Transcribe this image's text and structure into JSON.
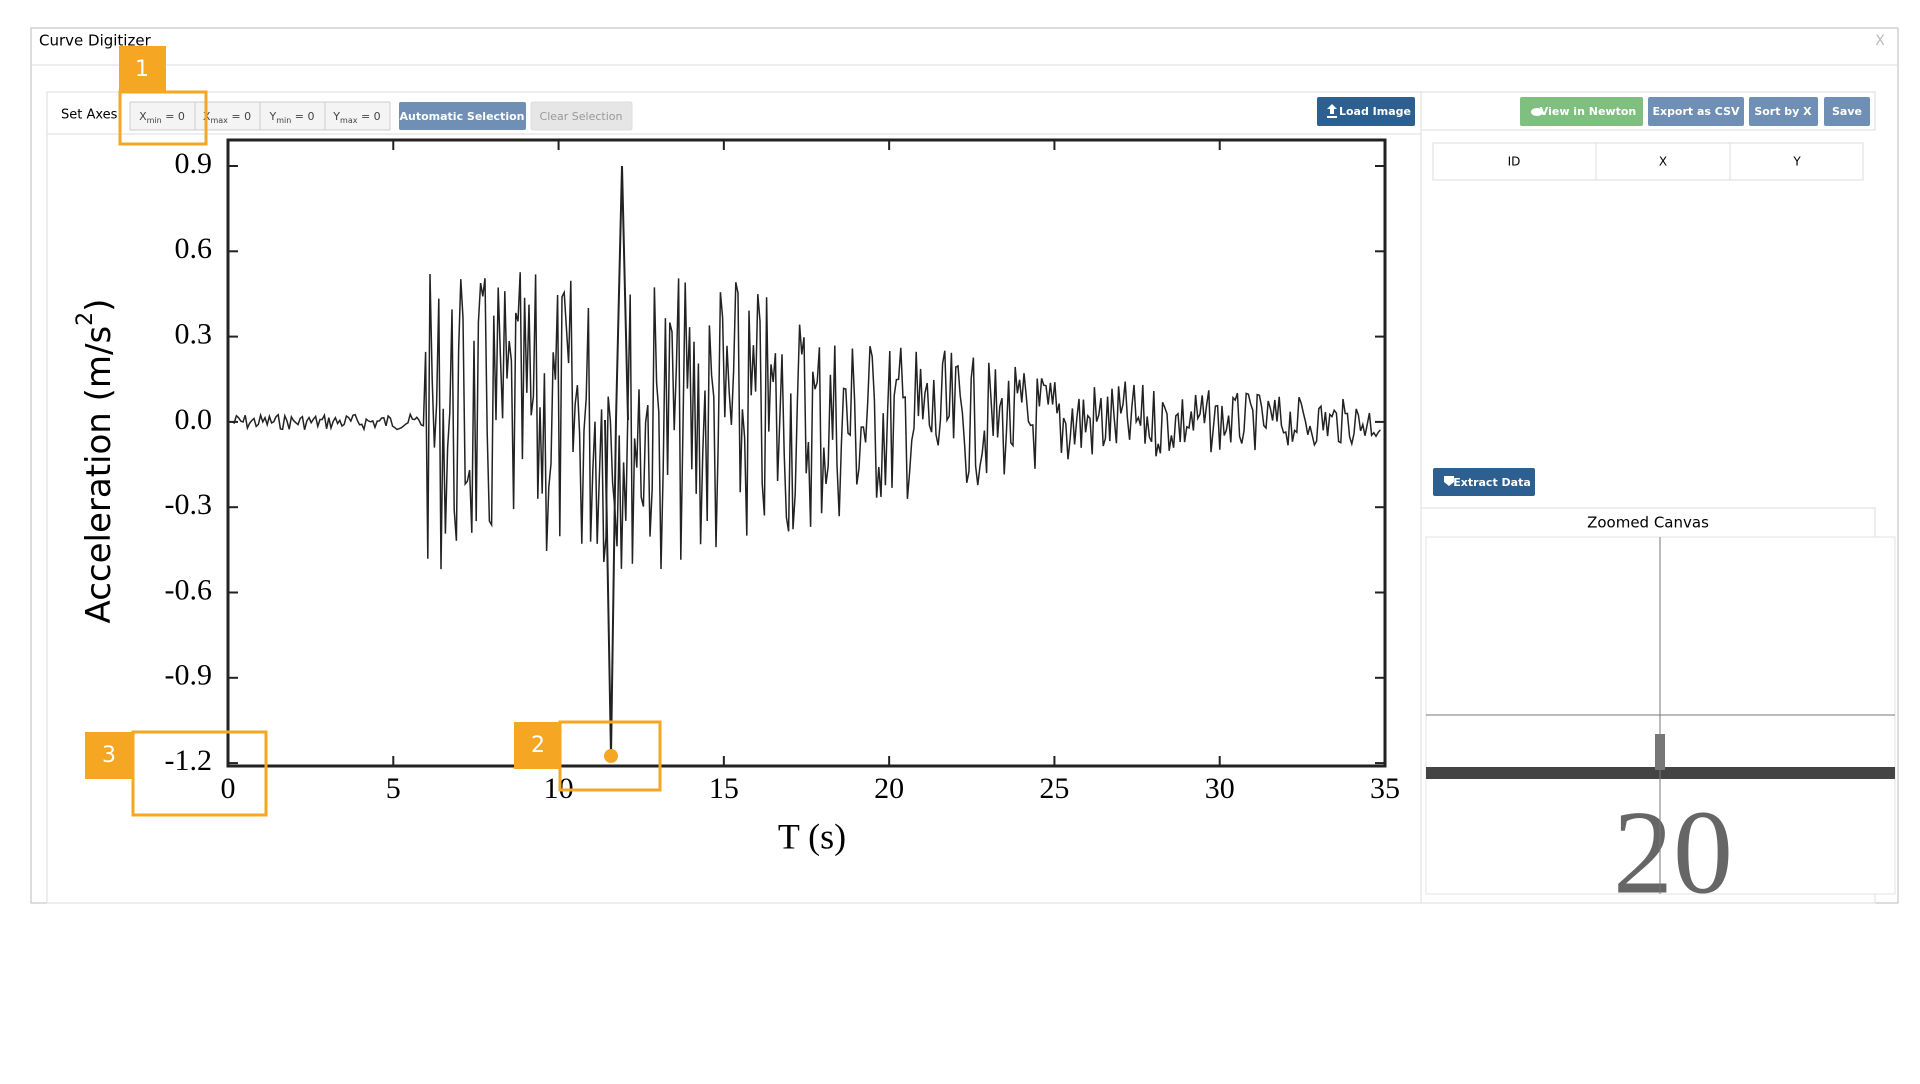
{
  "window": {
    "title": "Curve Digitizer",
    "close": "X"
  },
  "toolbar": {
    "label": "Set Axes:",
    "axis_buttons": [
      {
        "var": "X",
        "sub": "min",
        "eq": " = 0"
      },
      {
        "var": "X",
        "sub": "max",
        "eq": " = 0"
      },
      {
        "var": "Y",
        "sub": "min",
        "eq": " = 0"
      },
      {
        "var": "Y",
        "sub": "max",
        "eq": " = 0"
      }
    ],
    "automatic": "Automatic Selection",
    "clear": "Clear Selection",
    "load": "Load Image"
  },
  "right_toolbar": {
    "view": "View in Newton",
    "export": "Export as CSV",
    "sort": "Sort by X",
    "save": "Save"
  },
  "table": {
    "columns": [
      "ID",
      "X",
      "Y"
    ]
  },
  "extract": "Extract Data",
  "zoom": {
    "title": "Zoomed Canvas",
    "label": "20"
  },
  "image": {
    "ylabel": "Acceleration (m/s",
    "ylabel_sup": "2",
    "ylabel_end": ")",
    "xlabel": "T (s)",
    "yticks": [
      "0.9",
      "0.6",
      "0.3",
      "0.0",
      "-0.3",
      "-0.6",
      "-0.9",
      "-1.2"
    ],
    "xticks": [
      "0",
      "5",
      "10",
      "15",
      "20",
      "25",
      "30",
      "35"
    ]
  },
  "callouts": [
    "1",
    "2",
    "3"
  ]
}
